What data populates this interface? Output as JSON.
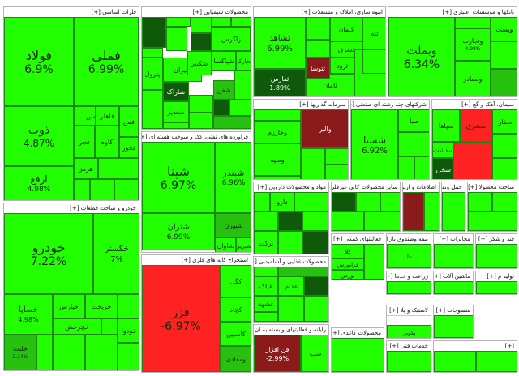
{
  "chart_data": {
    "type": "treemap",
    "groups": [
      {
        "name": "فلزات اساسی",
        "expand": "[+]",
        "tiles": [
          {
            "name": "فملی",
            "value": "6.99%"
          },
          {
            "name": "فولاد",
            "value": "6.9%"
          },
          {
            "name": "ذوب",
            "value": "4.87%"
          },
          {
            "name": "ارفع",
            "value": "4.98%"
          },
          {
            "name": "قاسمین"
          },
          {
            "name": "فس"
          },
          {
            "name": "فخوز"
          },
          {
            "name": "کاوه"
          },
          {
            "name": "فجر"
          },
          {
            "name": "هرمز"
          },
          {
            "name": "فاهلر"
          }
        ]
      },
      {
        "name": "محصولات شیمیایی",
        "expand": "[+]",
        "tiles": [
          {
            "name": "زاگرس"
          },
          {
            "name": "شیران"
          },
          {
            "name": "شکبیر"
          },
          {
            "name": "شپاکسا"
          },
          {
            "name": "شاراک"
          },
          {
            "name": "پترول"
          },
          {
            "name": "شفن"
          },
          {
            "name": "شخارک"
          },
          {
            "name": "شغدیر"
          }
        ]
      },
      {
        "name": "انبوه سازی، املاک و مستغلات",
        "expand": "[+]",
        "tiles": [
          {
            "name": "ثشاهد",
            "value": "6.99%"
          },
          {
            "name": "ثامان"
          },
          {
            "name": "ثفارس",
            "value": "1.89%"
          },
          {
            "name": "ثتوسا"
          },
          {
            "name": "ثرود"
          },
          {
            "name": "کیمان"
          },
          {
            "name": "ثشرق"
          },
          {
            "name": "ثنه"
          }
        ]
      },
      {
        "name": "بانکها و موسسات اعتباری",
        "expand": "[+]",
        "tiles": [
          {
            "name": "وبملت",
            "value": "6.34%"
          },
          {
            "name": "وتجارت",
            "value": "4.98%"
          },
          {
            "name": "وبصادر"
          },
          {
            "name": "وپست"
          }
        ]
      },
      {
        "name": "سرمایه گذاریها",
        "expand": "[+]",
        "tiles": [
          {
            "name": "وخارزم"
          },
          {
            "name": "والبر"
          },
          {
            "name": "وسپه"
          }
        ]
      },
      {
        "name": "شرکتهای چند رشته ای صنعتی",
        "expand": "[+]",
        "tiles": [
          {
            "name": "شستا",
            "value": "6.92%"
          },
          {
            "name": "صبا"
          }
        ]
      },
      {
        "name": "سیمان، آهک و گچ",
        "expand": "[+]",
        "tiles": [
          {
            "name": "سپاها"
          },
          {
            "name": "سشرق"
          },
          {
            "name": "سدشت"
          },
          {
            "name": "سفار"
          },
          {
            "name": "سخزر"
          }
        ]
      },
      {
        "name": "فراورده های نفتی، کک و سوخت هسته ای",
        "expand": "[+]",
        "tiles": [
          {
            "name": "شپنا",
            "value": "6.97%"
          },
          {
            "name": "شبندر",
            "value": "6.96%"
          },
          {
            "name": "شتران",
            "value": "6.99%"
          },
          {
            "name": "شبهرن"
          },
          {
            "name": "شاوان"
          },
          {
            "name": "شبریز"
          }
        ]
      },
      {
        "name": "خودرو و ساخت قطعات",
        "expand": "[+]",
        "tiles": [
          {
            "name": "خودرو",
            "value": "7.22%"
          },
          {
            "name": "خگستر",
            "value": "7%"
          },
          {
            "name": "خساپا",
            "value": "4.98%"
          },
          {
            "name": "خلنت",
            "value": "2.14%"
          },
          {
            "name": "خپارس"
          },
          {
            "name": "خچرخش"
          },
          {
            "name": "خودوا"
          },
          {
            "name": "خریخت"
          }
        ]
      },
      {
        "name": "استخراج کانه های فلزی",
        "expand": "[+]",
        "tiles": [
          {
            "name": "فزر",
            "value": "-6.97%"
          },
          {
            "name": "کگل"
          },
          {
            "name": "کچاد"
          },
          {
            "name": "کاسپین"
          },
          {
            "name": "ومعادن"
          }
        ]
      },
      {
        "name": "محصولات غذایی و آشامیدنی",
        "expand": "[+]",
        "tiles": [
          {
            "name": "غپاک"
          },
          {
            "name": "غشهد"
          },
          {
            "name": "غدام"
          }
        ]
      },
      {
        "name": "رایانه و فعالیتهای وابسته به آن",
        "expand": "[+]",
        "tiles": [
          {
            "name": "فن افزار",
            "value": "-2.99%"
          },
          {
            "name": "سپ"
          }
        ]
      },
      {
        "name": "مواد و محصولات دارویی",
        "expand": "[+]",
        "tiles": [
          {
            "name": "دارو"
          },
          {
            "name": "برکت"
          }
        ]
      },
      {
        "name": "سایر محصولات کانی غیرفلزی",
        "expand": "[+]",
        "tiles": []
      },
      {
        "name": "اطلاعات و ارتباطات",
        "expand": "[+]",
        "tiles": []
      },
      {
        "name": "حمل ونقل، انبارداری",
        "expand": "[+]",
        "tiles": []
      },
      {
        "name": "ساخت محصولا",
        "expand": "[+]",
        "tiles": []
      },
      {
        "name": "فعالیتهای کمکی",
        "expand": "[+]",
        "tiles": [
          {
            "name": "کلا"
          },
          {
            "name": "فرابورس"
          },
          {
            "name": "بورس"
          }
        ]
      },
      {
        "name": "بیمه وصندوق باز",
        "expand": "[+]",
        "tiles": [
          {
            "name": "ما"
          }
        ]
      },
      {
        "name": "مخابرات",
        "expand": "[+]",
        "tiles": []
      },
      {
        "name": "قند و شکر",
        "expand": "[+]",
        "tiles": []
      },
      {
        "name": "زراعت و خدما",
        "expand": "[+]",
        "tiles": []
      },
      {
        "name": "ماشین آلات",
        "expand": "[+]",
        "tiles": []
      },
      {
        "name": "تولید م",
        "expand": "[+]",
        "tiles": []
      },
      {
        "name": "لاستیک و پلا",
        "expand": "[+]",
        "tiles": [
          {
            "name": "پکویر"
          }
        ]
      },
      {
        "name": "منسوجات",
        "expand": "[+]",
        "tiles": []
      },
      {
        "name": "محصولات کاغذی",
        "expand": "[+]",
        "tiles": []
      },
      {
        "name": "خدمات فنی",
        "expand": "[+]",
        "tiles": []
      }
    ],
    "color_scale": {
      "positive": "#22ff00",
      "mid_positive": "#27c110",
      "dark_positive": "#0f5a0a",
      "negative": "#ff2222",
      "dark_negative": "#8b1a1a"
    }
  }
}
